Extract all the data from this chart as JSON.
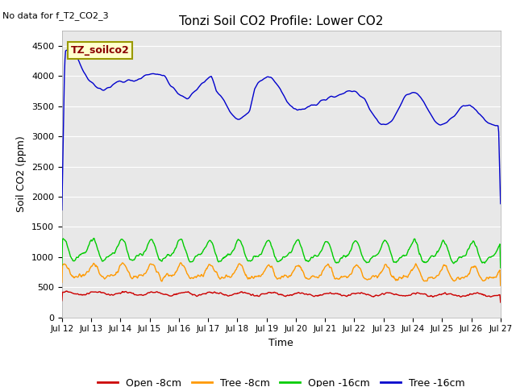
{
  "title": "Tonzi Soil CO2 Profile: Lower CO2",
  "no_data_label": "No data for f_T2_CO2_3",
  "ylabel": "Soil CO2 (ppm)",
  "xlabel": "Time",
  "ylim": [
    0,
    4750
  ],
  "yticks": [
    0,
    500,
    1000,
    1500,
    2000,
    2500,
    3000,
    3500,
    4000,
    4500
  ],
  "bg_color": "#e8e8e8",
  "legend_label": "TZ_soilco2",
  "legend_bg": "#ffffcc",
  "legend_border": "#999900",
  "series": {
    "open_8cm": {
      "color": "#cc0000",
      "label": "Open -8cm"
    },
    "tree_8cm": {
      "color": "#ff9900",
      "label": "Tree -8cm"
    },
    "open_16cm": {
      "color": "#00cc00",
      "label": "Open -16cm"
    },
    "tree_16cm": {
      "color": "#0000cc",
      "label": "Tree -16cm"
    }
  },
  "x_tick_labels": [
    "Jul 12",
    "Jul 13",
    "Jul 14",
    "Jul 15",
    "Jul 16",
    "Jul 17",
    "Jul 18",
    "Jul 19",
    "Jul 20",
    "Jul 21",
    "Jul 22",
    "Jul 23",
    "Jul 24",
    "Jul 25",
    "Jul 26",
    "Jul 27"
  ],
  "n_points": 720
}
